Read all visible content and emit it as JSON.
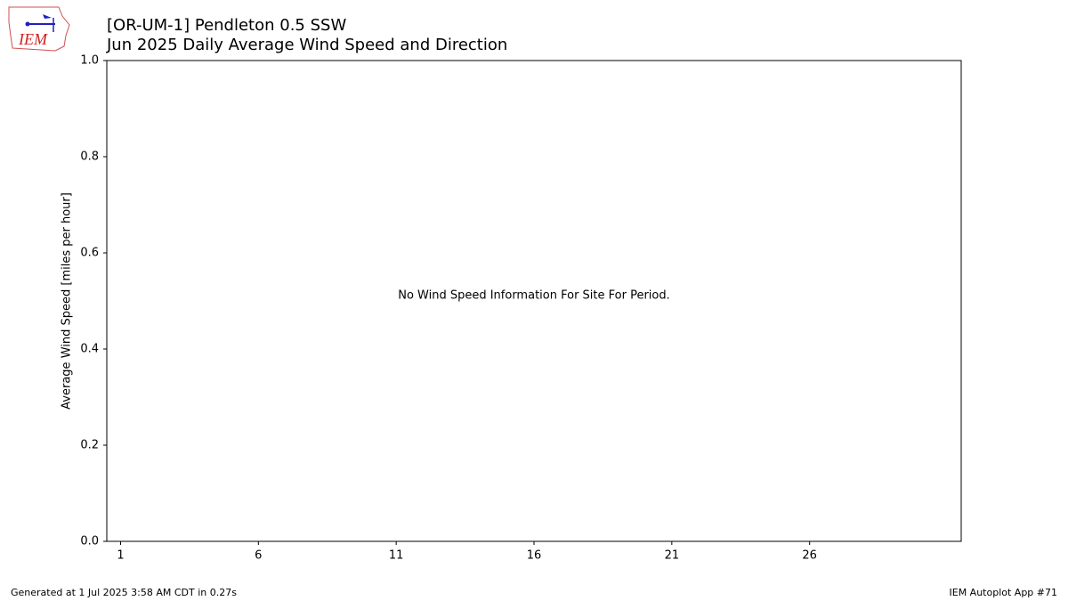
{
  "chart_data": {
    "type": "bar",
    "title": "[OR-UM-1] Pendleton 0.5 SSW",
    "subtitle": "Jun 2025 Daily Average Wind Speed and Direction",
    "ylabel": "Average Wind Speed [miles per hour]",
    "annotation": "No Wind Speed Information For Site For Period.",
    "xlim": [
      0.5,
      31.5
    ],
    "xticks": [
      1,
      6,
      11,
      16,
      21,
      26
    ],
    "ylim": [
      0,
      1
    ],
    "yticks": [
      {
        "value": 0,
        "label": "0.0"
      },
      0.2,
      0.4,
      0.6,
      0.8,
      {
        "value": 1,
        "label": "1.0"
      }
    ],
    "grid": false
  },
  "logo": {
    "text": "IEM"
  },
  "footer": {
    "left": "Generated at 1 Jul 2025 3:58 AM CDT in 0.27s",
    "right": "IEM Autoplot App #71"
  }
}
